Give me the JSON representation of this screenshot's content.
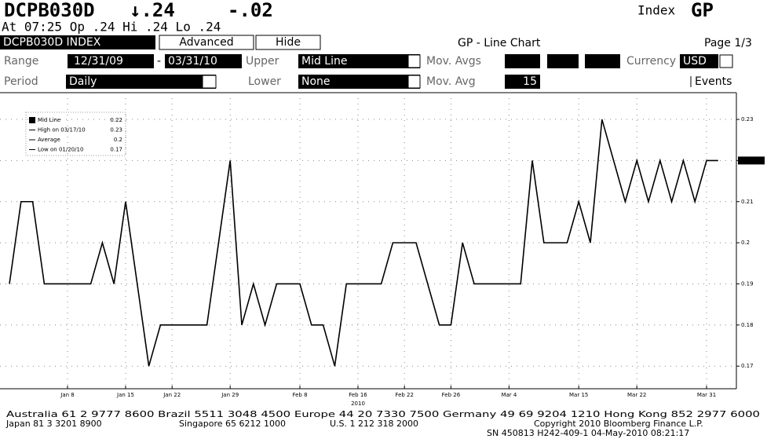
{
  "header": {
    "ticker": "DCPB030D",
    "last": "↓.24",
    "change": "-.02",
    "index_label": "Index",
    "function": "GP",
    "quote_line": "At 07:25  Op .24 Hi .24 Lo .24"
  },
  "controls": {
    "security": "DCPB030D INDEX",
    "advanced": "Advanced",
    "hide": "Hide",
    "view": "GP - Line Chart",
    "page": "Page 1/3",
    "range_label": "Range",
    "range_start": "12/31/09",
    "range_sep": "-",
    "range_end": "03/31/10",
    "upper_label": "Upper",
    "upper": "Mid Line",
    "mov_avgs_label": "Mov. Avgs",
    "currency_label": "Currency",
    "currency": "USD",
    "period_label": "Period",
    "period": "Daily",
    "lower_label": "Lower",
    "lower": "None",
    "mov_avg_label": "Mov. Avg",
    "mov_avg": "15",
    "events": "Events"
  },
  "chart_data": {
    "type": "line",
    "x_year": "2010",
    "categories": [
      null,
      null,
      null,
      null,
      null,
      "Jan 8",
      null,
      null,
      null,
      null,
      "Jan 15",
      null,
      null,
      null,
      "Jan 22",
      null,
      null,
      null,
      null,
      "Jan 29",
      null,
      null,
      null,
      null,
      null,
      "Feb 8",
      null,
      null,
      null,
      null,
      "Feb 16",
      null,
      null,
      null,
      "Feb 22",
      null,
      null,
      null,
      "Feb 26",
      null,
      null,
      null,
      null,
      "Mar 4",
      null,
      null,
      null,
      null,
      null,
      "Mar 15",
      null,
      null,
      null,
      null,
      "Mar 22",
      null,
      null,
      null,
      null,
      null,
      "Mar 31",
      null
    ],
    "series": [
      {
        "name": "Mid Line",
        "color": "#000000",
        "values": [
          0.19,
          0.21,
          0.21,
          0.19,
          0.19,
          0.19,
          0.19,
          0.19,
          0.2,
          0.19,
          0.21,
          0.19,
          0.17,
          0.18,
          0.18,
          0.18,
          0.18,
          0.18,
          0.2,
          0.22,
          0.18,
          0.19,
          0.18,
          0.19,
          0.19,
          0.19,
          0.18,
          0.18,
          0.17,
          0.19,
          0.19,
          0.19,
          0.19,
          0.2,
          0.2,
          0.2,
          0.19,
          0.18,
          0.18,
          0.2,
          0.19,
          0.19,
          0.19,
          0.19,
          0.19,
          0.22,
          0.2,
          0.2,
          0.2,
          0.21,
          0.2,
          0.23,
          0.22,
          0.21,
          0.22,
          0.21,
          0.22,
          0.21,
          0.22,
          0.21,
          0.22,
          0.22
        ]
      }
    ],
    "ylim": [
      0.1645,
      0.2365
    ],
    "yticks": [
      0.17,
      0.18,
      0.19,
      0.2,
      0.21,
      0.22,
      0.23
    ],
    "grid": true,
    "legend_box": [
      {
        "label": "Mid Line",
        "value": 0.22
      },
      {
        "label": "High on 03/17/10",
        "value": 0.23
      },
      {
        "label": "Average",
        "value": 0.2
      },
      {
        "label": "Low on 01/20/10",
        "value": 0.17
      }
    ]
  },
  "footer": {
    "line1": "Australia 61 2 9777 8600 Brazil 5511 3048 4500 Europe 44 20 7330 7500 Germany 49 69 9204 1210 Hong Kong 852 2977 6000",
    "japan": "Japan 81 3 3201 8900",
    "singapore": "Singapore 65 6212 1000",
    "us": "U.S. 1 212 318 2000",
    "copyright": "Copyright 2010 Bloomberg Finance L.P.",
    "sn": "SN 450813 H242-409-1 04-May-2010 08:21:17"
  }
}
